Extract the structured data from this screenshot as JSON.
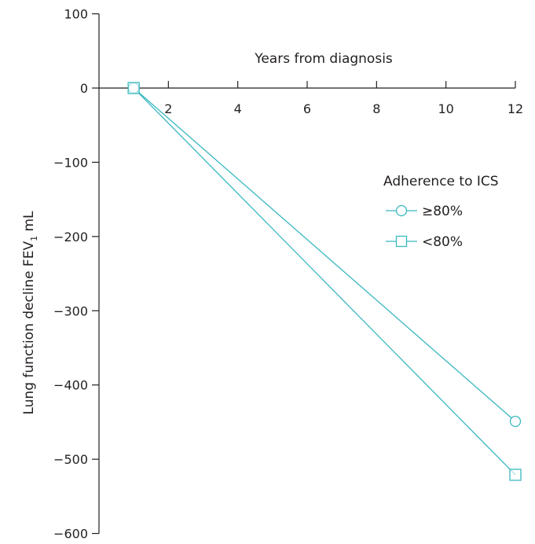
{
  "chart_data": {
    "type": "line",
    "xlabel": "Years from diagnosis",
    "ylabel": {
      "prefix": "Lung function decline FEV",
      "subscript": "1",
      "suffix": " mL"
    },
    "xlim": [
      0,
      12
    ],
    "ylim": [
      -600,
      100
    ],
    "x_ticks": [
      2,
      4,
      6,
      8,
      10,
      12
    ],
    "x_tick_labels": [
      "2",
      "4",
      "6",
      "8",
      "10",
      "12"
    ],
    "y_ticks": [
      100,
      0,
      -100,
      -200,
      -300,
      -400,
      -500,
      -600
    ],
    "y_tick_labels": [
      "100",
      "0",
      "−100",
      "−200",
      "−300",
      "−400",
      "−500",
      "−600"
    ],
    "legend_title": "Adherence to ICS",
    "legend_position": "right",
    "grid": false,
    "series": [
      {
        "name": "≥80%",
        "marker": "circle",
        "color": "#3ab8c0",
        "points": [
          [
            1,
            0
          ],
          [
            12,
            -449
          ]
        ]
      },
      {
        "name": "<80%",
        "marker": "square",
        "color": "#3ab8c0",
        "points": [
          [
            1,
            0
          ],
          [
            12,
            -521
          ]
        ]
      }
    ]
  }
}
